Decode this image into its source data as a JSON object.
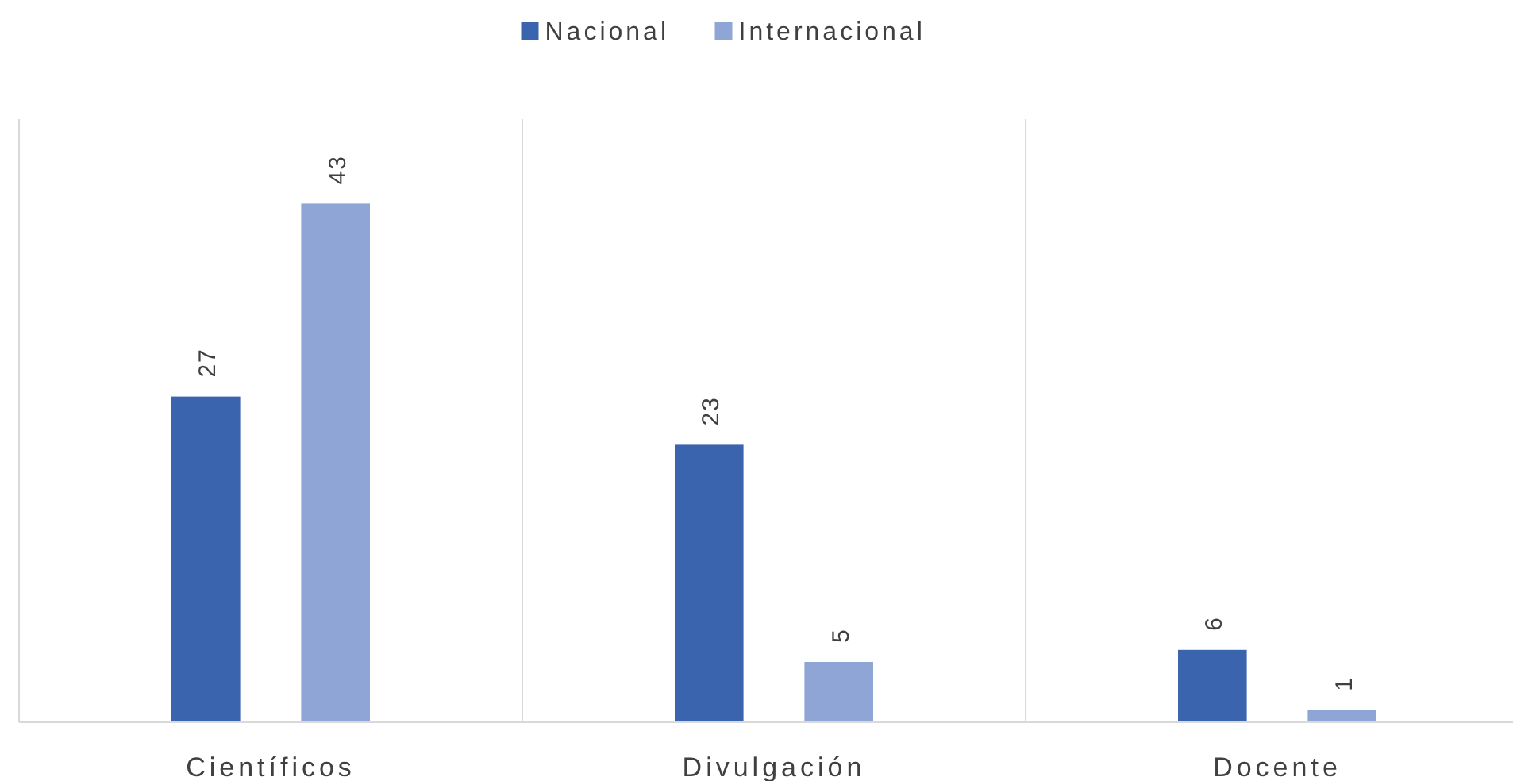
{
  "chart_data": {
    "type": "bar",
    "categories": [
      "Científicos",
      "Divulgación",
      "Docente"
    ],
    "series": [
      {
        "name": "Nacional",
        "color": "#3a64ad",
        "values": [
          27,
          23,
          6
        ]
      },
      {
        "name": "Internacional",
        "color": "#8fa5d6",
        "values": [
          43,
          5,
          1
        ]
      }
    ],
    "data_labels": true,
    "grid": "x",
    "legend": "top"
  }
}
